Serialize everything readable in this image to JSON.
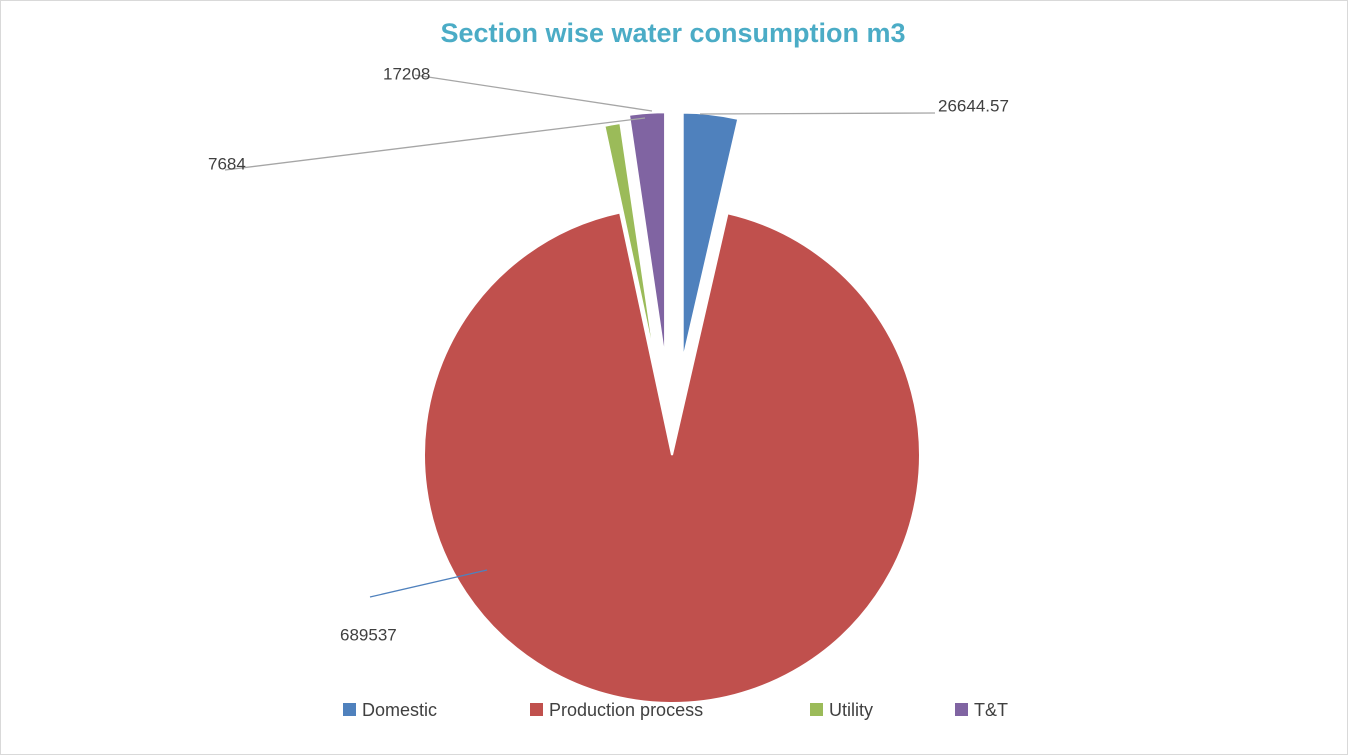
{
  "chart_data": {
    "type": "pie",
    "title": "Section wise water consumption m3",
    "categories": [
      "Domestic",
      "Production process",
      "Utility",
      "T&T"
    ],
    "values": [
      26644.57,
      689537,
      7684,
      17208
    ],
    "colors": [
      "#4f81bd",
      "#c0504d",
      "#9bbb59",
      "#8064a2"
    ],
    "legend": "bottom"
  }
}
